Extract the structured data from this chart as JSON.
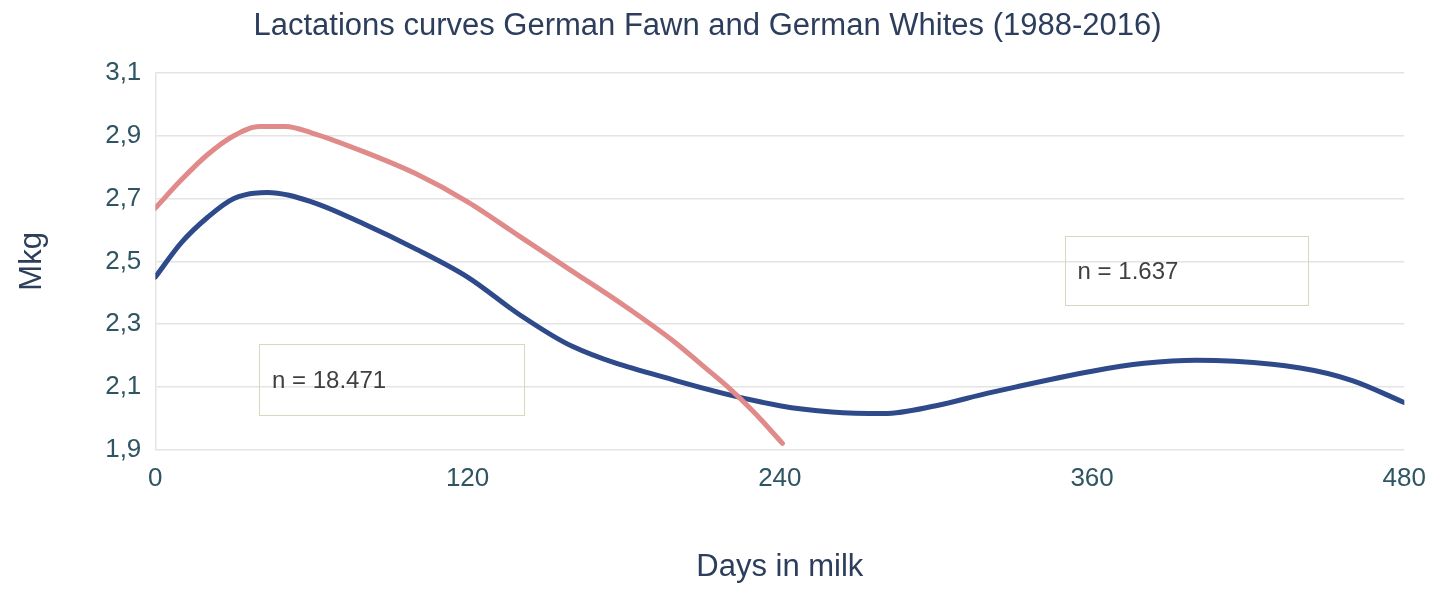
{
  "chart_data": {
    "type": "line",
    "title": "Lactations curves German Fawn and German Whites (1988-2016)",
    "xlabel": "Days in milk",
    "ylabel": "Mkg",
    "xlim": [
      0,
      480
    ],
    "xticks": [
      0,
      120,
      240,
      360,
      480
    ],
    "ylim": [
      1.9,
      3.1
    ],
    "yticks": [
      {
        "value": 1.9,
        "label": "1,9"
      },
      {
        "value": 2.1,
        "label": "2,1"
      },
      {
        "value": 2.3,
        "label": "2,3"
      },
      {
        "value": 2.5,
        "label": "2,5"
      },
      {
        "value": 2.7,
        "label": "2,7"
      },
      {
        "value": 2.9,
        "label": "2,9"
      },
      {
        "value": 3.1,
        "label": "3,1"
      }
    ],
    "grid": "y",
    "legend": false,
    "marker": "none",
    "line_style": "solid",
    "annotations": [
      "n = 18.471",
      "n = 1.637"
    ],
    "series": [
      {
        "color": "#e08a8a",
        "x": [
          0,
          10,
          20,
          30,
          40,
          50,
          60,
          80,
          100,
          120,
          140,
          160,
          180,
          200,
          210,
          220,
          230,
          241
        ],
        "values": [
          2.67,
          2.76,
          2.84,
          2.9,
          2.93,
          2.93,
          2.91,
          2.85,
          2.78,
          2.69,
          2.58,
          2.47,
          2.36,
          2.24,
          2.17,
          2.1,
          2.02,
          1.92
        ]
      },
      {
        "color": "#2e4a8a",
        "x": [
          0,
          10,
          20,
          30,
          43,
          60,
          80,
          100,
          120,
          140,
          160,
          200,
          240,
          260,
          280,
          300,
          320,
          360,
          380,
          400,
          440,
          460,
          480
        ],
        "values": [
          2.45,
          2.56,
          2.64,
          2.7,
          2.72,
          2.69,
          2.62,
          2.54,
          2.45,
          2.33,
          2.23,
          2.12,
          2.04,
          2.02,
          2.015,
          2.04,
          2.08,
          2.15,
          2.175,
          2.185,
          2.16,
          2.12,
          2.05
        ]
      }
    ]
  }
}
